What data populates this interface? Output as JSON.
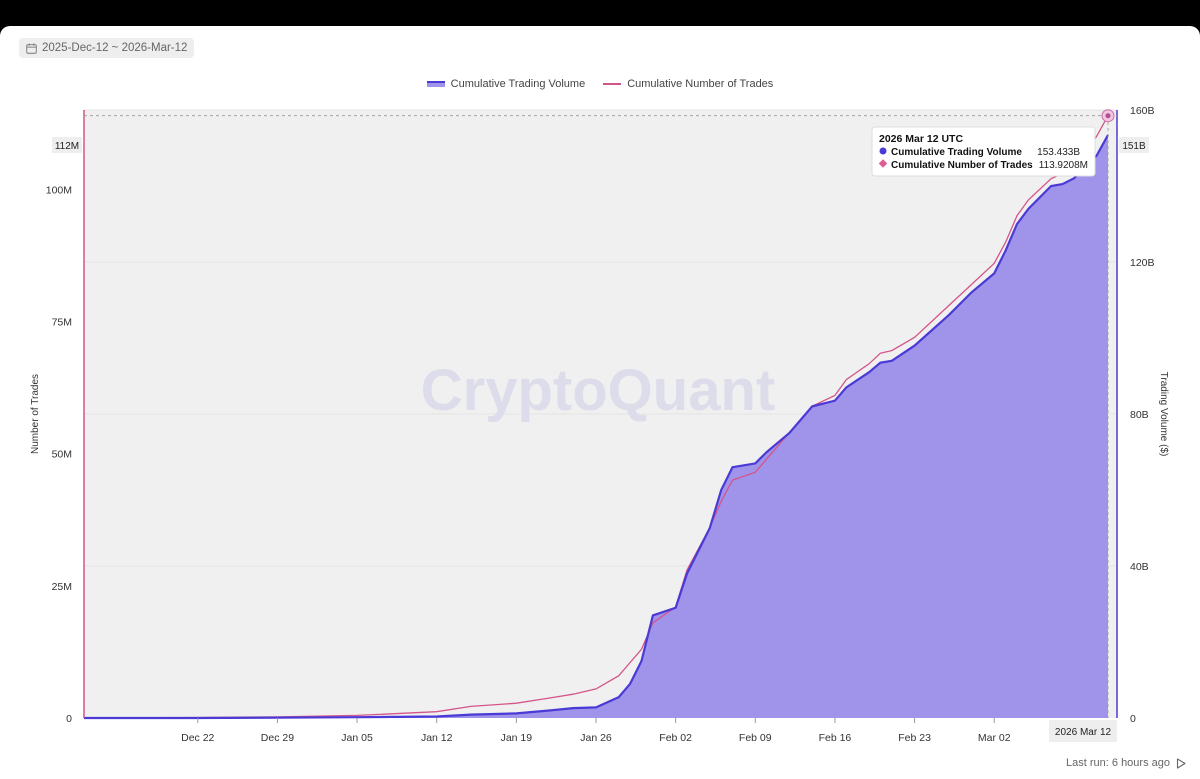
{
  "date_range": {
    "label": "2025-Dec-12 ~ 2026-Mar-12",
    "icon": "calendar-icon"
  },
  "legend": [
    {
      "label": "Cumulative Trading Volume",
      "color": "#4a3ad6"
    },
    {
      "label": "Cumulative Number of Trades",
      "color": "#d4558a"
    }
  ],
  "watermark": "CryptoQuant",
  "footer": {
    "last_run": "Last run: 6 hours ago",
    "icon": "play-icon"
  },
  "tooltip": {
    "date": "2026 Mar 12 UTC",
    "rows": [
      {
        "label": "Cumulative Trading Volume",
        "value": "153.433B",
        "color": "#4a3ad6"
      },
      {
        "label": "Cumulative Number of Trades",
        "value": "113.9208M",
        "color": "#e05c94"
      }
    ]
  },
  "crosshair": {
    "left_label": "112M",
    "right_label": "151B",
    "x_label": "2026 Mar 12"
  },
  "chart_data": {
    "type": "area",
    "x_range": [
      "2025-12-12",
      "2026-03-12"
    ],
    "x_ticks": [
      "Dec 22",
      "Dec 29",
      "Jan 05",
      "Jan 12",
      "Jan 19",
      "Jan 26",
      "Feb 02",
      "Feb 09",
      "Feb 16",
      "Feb 23",
      "Mar 02"
    ],
    "x_tick_dates": [
      "2025-12-22",
      "2025-12-29",
      "2026-01-05",
      "2026-01-12",
      "2026-01-19",
      "2026-01-26",
      "2026-02-02",
      "2026-02-09",
      "2026-02-16",
      "2026-02-23",
      "2026-03-02"
    ],
    "y_left": {
      "label": "Number of Trades",
      "ticks": [
        "0",
        "25M",
        "50M",
        "75M",
        "100M"
      ],
      "tick_values": [
        0,
        25,
        50,
        75,
        100
      ],
      "unit": "M",
      "range": [
        0,
        115
      ]
    },
    "y_right": {
      "label": "Trading Volume ($)",
      "ticks": [
        "0",
        "40B",
        "80B",
        "120B",
        "160B"
      ],
      "tick_values": [
        0,
        40,
        80,
        120,
        160
      ],
      "unit": "B",
      "range": [
        0,
        160
      ]
    },
    "series": [
      {
        "name": "Cumulative Trading Volume",
        "axis": "right",
        "style": "area",
        "color": "#4a3ad6",
        "fill": "#9f93ea",
        "unit": "B",
        "points": [
          [
            "2025-12-12",
            0
          ],
          [
            "2025-12-22",
            0
          ],
          [
            "2025-12-29",
            0.1
          ],
          [
            "2026-01-05",
            0.2
          ],
          [
            "2026-01-12",
            0.4
          ],
          [
            "2026-01-15",
            0.9
          ],
          [
            "2026-01-19",
            1.2
          ],
          [
            "2026-01-22",
            2.0
          ],
          [
            "2026-01-24",
            2.6
          ],
          [
            "2026-01-26",
            2.8
          ],
          [
            "2026-01-28",
            5.5
          ],
          [
            "2026-01-29",
            9
          ],
          [
            "2026-01-30",
            15
          ],
          [
            "2026-01-31",
            27
          ],
          [
            "2026-02-02",
            29
          ],
          [
            "2026-02-03",
            38
          ],
          [
            "2026-02-05",
            50
          ],
          [
            "2026-02-06",
            60
          ],
          [
            "2026-02-07",
            66
          ],
          [
            "2026-02-08",
            66.5
          ],
          [
            "2026-02-09",
            67
          ],
          [
            "2026-02-10",
            70
          ],
          [
            "2026-02-12",
            75
          ],
          [
            "2026-02-14",
            82
          ],
          [
            "2026-02-16",
            83.5
          ],
          [
            "2026-02-17",
            87
          ],
          [
            "2026-02-19",
            91
          ],
          [
            "2026-02-20",
            93.5
          ],
          [
            "2026-02-21",
            94
          ],
          [
            "2026-02-23",
            98
          ],
          [
            "2026-02-26",
            106
          ],
          [
            "2026-02-28",
            112
          ],
          [
            "2026-03-02",
            117
          ],
          [
            "2026-03-03",
            123
          ],
          [
            "2026-03-04",
            130
          ],
          [
            "2026-03-05",
            134
          ],
          [
            "2026-03-07",
            140
          ],
          [
            "2026-03-08",
            140.5
          ],
          [
            "2026-03-09",
            142
          ],
          [
            "2026-03-11",
            148
          ],
          [
            "2026-03-12",
            153.433
          ]
        ]
      },
      {
        "name": "Cumulative Number of Trades",
        "axis": "left",
        "style": "line",
        "color": "#d4558a",
        "unit": "M",
        "points": [
          [
            "2025-12-12",
            0
          ],
          [
            "2025-12-22",
            0.1
          ],
          [
            "2025-12-29",
            0.2
          ],
          [
            "2026-01-05",
            0.5
          ],
          [
            "2026-01-12",
            1.2
          ],
          [
            "2026-01-15",
            2.2
          ],
          [
            "2026-01-19",
            2.8
          ],
          [
            "2026-01-22",
            3.8
          ],
          [
            "2026-01-24",
            4.5
          ],
          [
            "2026-01-26",
            5.5
          ],
          [
            "2026-01-28",
            8
          ],
          [
            "2026-01-29",
            10.5
          ],
          [
            "2026-01-30",
            13
          ],
          [
            "2026-01-31",
            18
          ],
          [
            "2026-02-02",
            21
          ],
          [
            "2026-02-03",
            28
          ],
          [
            "2026-02-05",
            36
          ],
          [
            "2026-02-06",
            41
          ],
          [
            "2026-02-07",
            45
          ],
          [
            "2026-02-09",
            46.5
          ],
          [
            "2026-02-10",
            49
          ],
          [
            "2026-02-12",
            54
          ],
          [
            "2026-02-14",
            59
          ],
          [
            "2026-02-16",
            61
          ],
          [
            "2026-02-17",
            64
          ],
          [
            "2026-02-19",
            67
          ],
          [
            "2026-02-20",
            69
          ],
          [
            "2026-02-21",
            69.5
          ],
          [
            "2026-02-23",
            72
          ],
          [
            "2026-02-26",
            78
          ],
          [
            "2026-02-28",
            82
          ],
          [
            "2026-03-02",
            86
          ],
          [
            "2026-03-03",
            90
          ],
          [
            "2026-03-04",
            95
          ],
          [
            "2026-03-05",
            98
          ],
          [
            "2026-03-07",
            102
          ],
          [
            "2026-03-08",
            103
          ],
          [
            "2026-03-09",
            104
          ],
          [
            "2026-03-11",
            110
          ],
          [
            "2026-03-12",
            113.9208
          ]
        ]
      }
    ]
  }
}
